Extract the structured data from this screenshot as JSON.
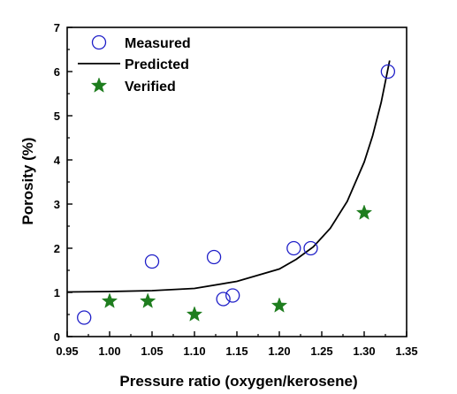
{
  "chart_data": {
    "type": "scatter",
    "xlabel": "Pressure ratio (oxygen/kerosene)",
    "ylabel": "Porosity (%)",
    "xlim": [
      0.95,
      1.35
    ],
    "ylim": [
      0,
      7
    ],
    "x_ticks": [
      "0.95",
      "1.00",
      "1.05",
      "1.10",
      "1.15",
      "1.20",
      "1.25",
      "1.30",
      "1.35"
    ],
    "y_ticks": [
      "0",
      "1",
      "2",
      "3",
      "4",
      "5",
      "6",
      "7"
    ],
    "grid": false,
    "legend_position": "top-left",
    "series": [
      {
        "name": "Measured",
        "marker": "open-circle",
        "color": "#1f1fc8",
        "points": [
          {
            "x": 0.97,
            "y": 0.43
          },
          {
            "x": 1.05,
            "y": 1.7
          },
          {
            "x": 1.123,
            "y": 1.8
          },
          {
            "x": 1.134,
            "y": 0.85
          },
          {
            "x": 1.145,
            "y": 0.93
          },
          {
            "x": 1.217,
            "y": 2.0
          },
          {
            "x": 1.237,
            "y": 2.0
          },
          {
            "x": 1.328,
            "y": 6.0
          }
        ]
      },
      {
        "name": "Predicted",
        "marker": "line",
        "color": "#000000",
        "points": [
          {
            "x": 0.95,
            "y": 1.01
          },
          {
            "x": 1.0,
            "y": 1.02
          },
          {
            "x": 1.05,
            "y": 1.04
          },
          {
            "x": 1.1,
            "y": 1.09
          },
          {
            "x": 1.15,
            "y": 1.25
          },
          {
            "x": 1.2,
            "y": 1.53
          },
          {
            "x": 1.22,
            "y": 1.75
          },
          {
            "x": 1.24,
            "y": 2.03
          },
          {
            "x": 1.26,
            "y": 2.45
          },
          {
            "x": 1.28,
            "y": 3.06
          },
          {
            "x": 1.3,
            "y": 3.95
          },
          {
            "x": 1.31,
            "y": 4.55
          },
          {
            "x": 1.32,
            "y": 5.3
          },
          {
            "x": 1.33,
            "y": 6.25
          }
        ]
      },
      {
        "name": "Verified",
        "marker": "star",
        "color": "#1e7d1e",
        "points": [
          {
            "x": 1.0,
            "y": 0.8
          },
          {
            "x": 1.045,
            "y": 0.8
          },
          {
            "x": 1.1,
            "y": 0.5
          },
          {
            "x": 1.2,
            "y": 0.7
          },
          {
            "x": 1.3,
            "y": 2.8
          }
        ]
      }
    ]
  }
}
